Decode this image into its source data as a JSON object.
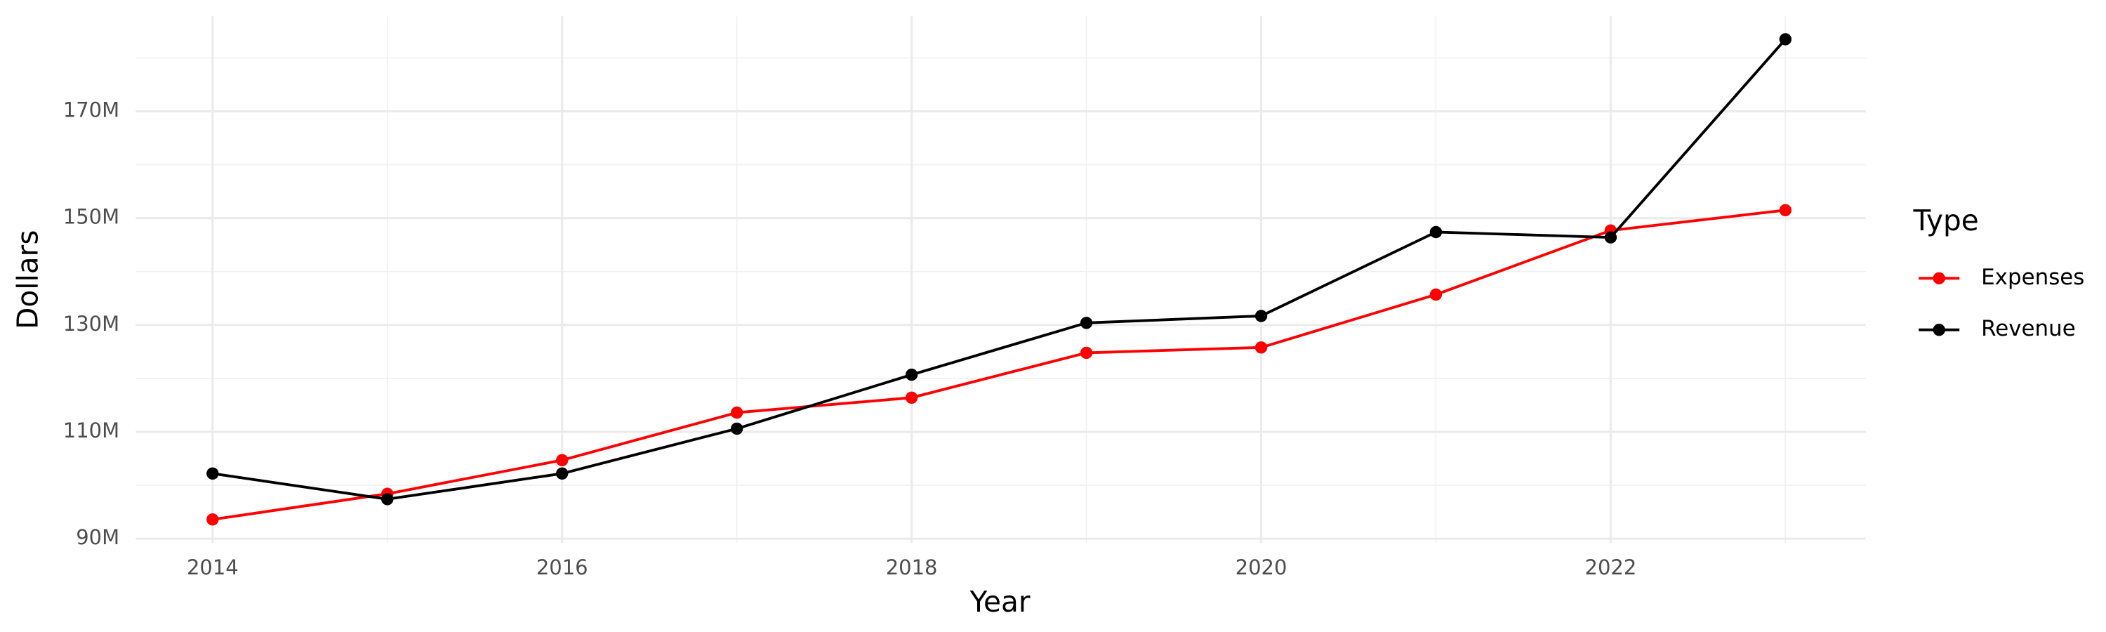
{
  "chart_data": {
    "type": "line",
    "x_label": "Year",
    "y_label": "Dollars",
    "legend_title": "Type",
    "x": [
      2014,
      2015,
      2016,
      2017,
      2018,
      2019,
      2020,
      2021,
      2022,
      2023
    ],
    "series": [
      {
        "name": "Expenses",
        "color": "#ff0000",
        "values": [
          93600000,
          98400000,
          104700000,
          113600000,
          116400000,
          124800000,
          125800000,
          135700000,
          147700000,
          151500000
        ]
      },
      {
        "name": "Revenue",
        "color": "#000000",
        "values": [
          102200000,
          97400000,
          102200000,
          110600000,
          120700000,
          130400000,
          131700000,
          147400000,
          146400000,
          183500000
        ]
      }
    ],
    "xlim": [
      2013.56,
      2023.46
    ],
    "xticks": [
      2014,
      2016,
      2018,
      2020,
      2022
    ],
    "ylim": [
      89200000,
      187800000
    ],
    "yticks": [
      {
        "value": 90000000,
        "label": "90M"
      },
      {
        "value": 110000000,
        "label": "110M"
      },
      {
        "value": 130000000,
        "label": "130M"
      },
      {
        "value": 150000000,
        "label": "150M"
      },
      {
        "value": 170000000,
        "label": "170M"
      }
    ],
    "grid": true,
    "legend": "right"
  }
}
